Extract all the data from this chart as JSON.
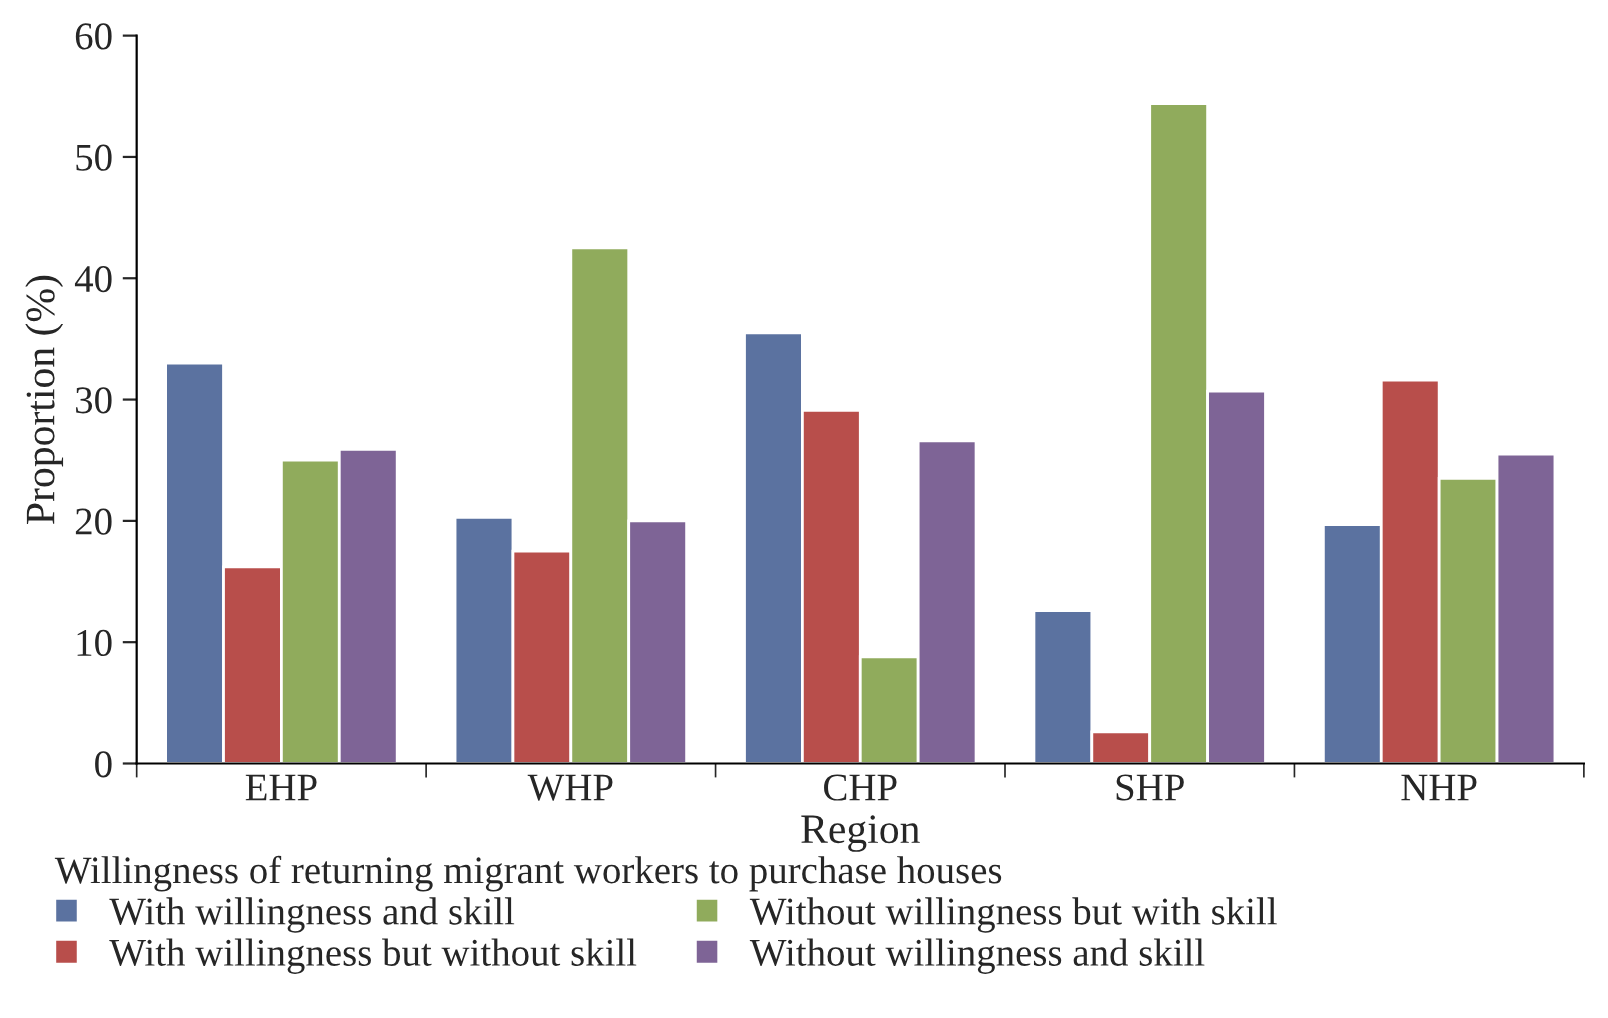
{
  "chart_data": {
    "type": "bar",
    "xlabel": "Region",
    "ylabel": "Proportion (%)",
    "legend_title": "Willingness of returning migrant workers to purchase houses",
    "categories": [
      "EHP",
      "WHP",
      "CHP",
      "SHP",
      "NHP"
    ],
    "series": [
      {
        "name": "With willingness and skill",
        "color": "#5b72a0",
        "values": [
          33.0,
          20.3,
          35.5,
          12.6,
          19.7
        ]
      },
      {
        "name": "With willingness but without skill",
        "color": "#b84e4b",
        "values": [
          16.2,
          17.5,
          29.1,
          2.6,
          31.6
        ]
      },
      {
        "name": "Without willingness but with skill",
        "color": "#90ab5c",
        "values": [
          25.0,
          42.5,
          8.8,
          54.4,
          23.5
        ]
      },
      {
        "name": "Without willingness and skill",
        "color": "#7e6496",
        "values": [
          25.9,
          20.0,
          26.6,
          30.7,
          25.5
        ]
      }
    ],
    "ylim": [
      0,
      60
    ],
    "yticks": [
      0,
      10,
      20,
      30,
      40,
      50,
      60
    ],
    "grid": false,
    "legend": "bottom"
  }
}
